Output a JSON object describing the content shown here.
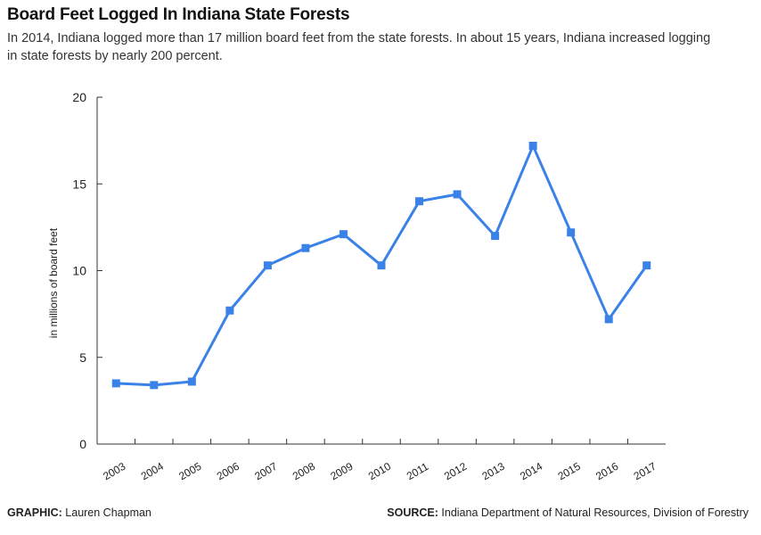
{
  "header": {
    "title": "Board Feet Logged In Indiana State Forests",
    "subtitle": "In 2014, Indiana logged more than 17 million board feet from the state forests. In about 15 years, Indiana increased logging in state forests by nearly 200 percent."
  },
  "footer": {
    "graphic_label": "GRAPHIC:",
    "graphic_value": " Lauren Chapman",
    "source_label": "SOURCE:",
    "source_value": " Indiana Department of Natural Resources, Division of Forestry"
  },
  "colors": {
    "line": "#3b82e8",
    "axis": "#333333"
  },
  "chart_data": {
    "type": "line",
    "title": "Board Feet Logged In Indiana State Forests",
    "xlabel": "",
    "ylabel": "in millions of board feet",
    "categories": [
      "2003",
      "2004",
      "2005",
      "2006",
      "2007",
      "2008",
      "2009",
      "2010",
      "2011",
      "2012",
      "2013",
      "2014",
      "2015",
      "2016",
      "2017"
    ],
    "series": [
      {
        "values": [
          3.5,
          3.4,
          3.6,
          7.7,
          10.3,
          11.3,
          12.1,
          10.3,
          14.0,
          14.4,
          12.0,
          17.2,
          12.2,
          7.2,
          10.3
        ]
      }
    ],
    "ylim": [
      0,
      20
    ],
    "yticks": [
      0,
      5,
      10,
      15,
      20
    ],
    "grid": false,
    "legend": "none"
  }
}
